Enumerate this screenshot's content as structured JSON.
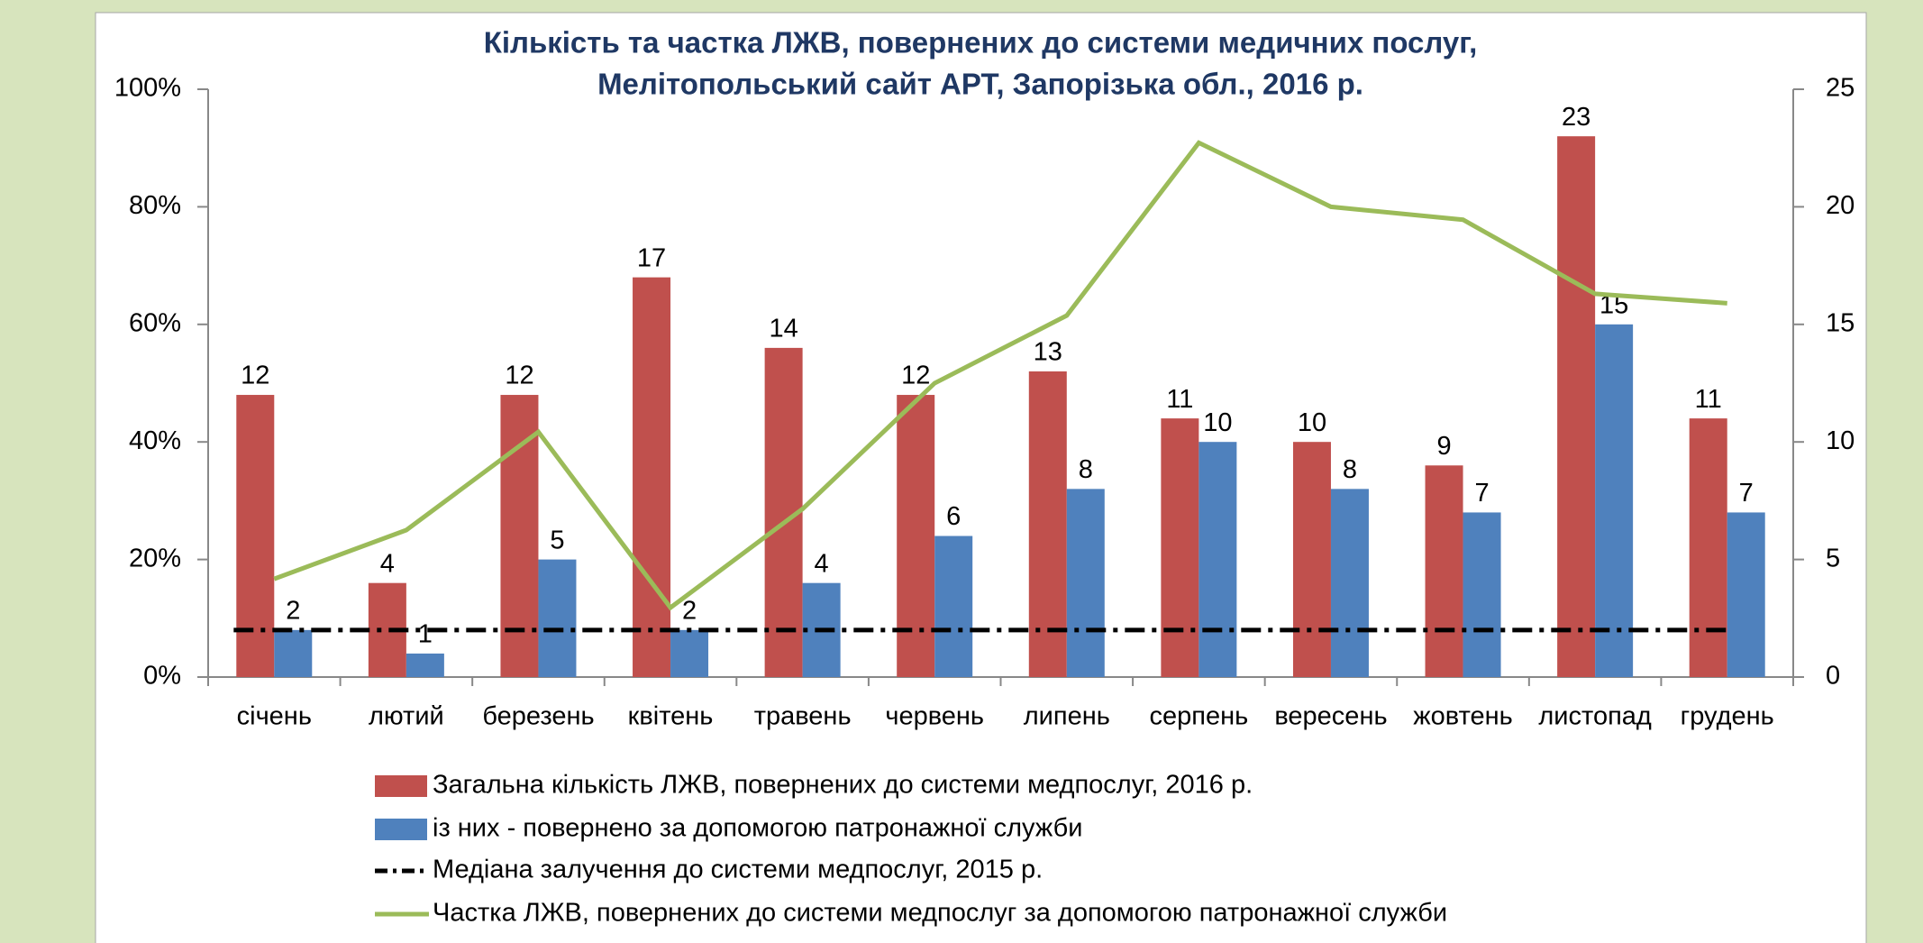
{
  "chart_data": {
    "type": "bar",
    "title": "Кількість та частка ЛЖВ, повернених до системи медичних послуг,",
    "subtitle": "Мелітопольський сайт АРТ, Запорізька обл., 2016 р.",
    "categories": [
      "січень",
      "лютий",
      "березень",
      "квітень",
      "травень",
      "червень",
      "липень",
      "серпень",
      "вересень",
      "жовтень",
      "листопад",
      "грудень"
    ],
    "series": [
      {
        "name": "Загальна кількість ЛЖВ, повернених до системи медпослуг, 2016 р.",
        "type": "bar",
        "axis": "y2",
        "color": "#c0504d",
        "values": [
          12,
          4,
          12,
          17,
          14,
          12,
          13,
          11,
          10,
          9,
          23,
          11
        ]
      },
      {
        "name": "із них - повернено за допомогою патронажної служби",
        "type": "bar",
        "axis": "y2",
        "color": "#4f81bd",
        "values": [
          2,
          1,
          5,
          2,
          4,
          6,
          8,
          10,
          8,
          7,
          15,
          7
        ]
      },
      {
        "name": "Медіана залучення до системи медпослуг, 2015 р.",
        "type": "dashdot",
        "axis": "y2",
        "color": "#000000",
        "values": [
          2,
          2,
          2,
          2,
          2,
          2,
          2,
          2,
          2,
          2,
          2,
          2
        ]
      },
      {
        "name": "Частка ЛЖВ, повернених до системи медпослуг за допомогою патронажної служби",
        "type": "line",
        "axis": "y",
        "color": "#9bbb59",
        "values": [
          16.7,
          25,
          41.7,
          11.8,
          28.6,
          50,
          61.5,
          90.9,
          80,
          77.8,
          65.2,
          63.6
        ]
      }
    ],
    "ylim": [
      0,
      100
    ],
    "yticks": [
      {
        "value": 0,
        "label": "0%"
      },
      {
        "value": 20,
        "label": "20%"
      },
      {
        "value": 40,
        "label": "40%"
      },
      {
        "value": 60,
        "label": "60%"
      },
      {
        "value": 80,
        "label": "80%"
      },
      {
        "value": 100,
        "label": "100%"
      }
    ],
    "y2lim": [
      0,
      25
    ],
    "y2ticks": [
      0,
      5,
      10,
      15,
      20,
      25
    ],
    "data_labels": [
      true,
      true,
      false,
      false
    ]
  }
}
